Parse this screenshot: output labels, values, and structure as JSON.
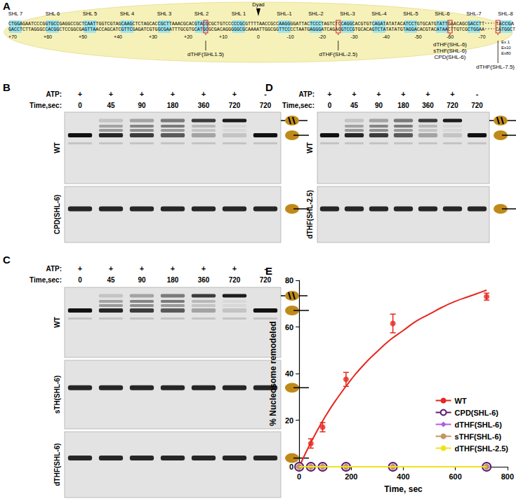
{
  "panel_labels": [
    "A",
    "B",
    "C",
    "D",
    "E"
  ],
  "panel_a": {
    "dyad": "Dyad",
    "shl_labels": [
      {
        "label": "SHL 7",
        "shl": 7
      },
      {
        "label": "SHL 6",
        "shl": 6
      },
      {
        "label": "SHL 5",
        "shl": 5
      },
      {
        "label": "SHL 4",
        "shl": 4
      },
      {
        "label": "SHL 3",
        "shl": 3
      },
      {
        "label": "SHL 2",
        "shl": 2
      },
      {
        "label": "SHL 1",
        "shl": 1
      },
      {
        "label": "SHL-1",
        "shl": -1
      },
      {
        "label": "SHL-2",
        "shl": -2
      },
      {
        "label": "SHL-3",
        "shl": -3
      },
      {
        "label": "SHL-4",
        "shl": -4
      },
      {
        "label": "SHL-5",
        "shl": -5
      },
      {
        "label": "SHL-6",
        "shl": -6
      },
      {
        "label": "SHL-7",
        "shl": -7
      },
      {
        "label": "SHL-8",
        "shl": -8
      }
    ],
    "top_strand": "CTGGAGAATCCCGGTGCCGAGGCCGCTCAATTGGTCGTAGCAAGCTCTAGCACCGCTTAAACGCACGTACGCGCTGTCCCCCGCGTTTTAACCGCCAAGGGGATTACTCCCTAGTCTCCAGGCACGTGTCAGATATATACATCCTGTGCATGTATTGAACAGCGACCTT",
    "bottom_strand": "GACCTCTTAGGGCCACGGCTCCGGCGAGTTAACCAGCATCGTTCGAGATCGTGGCGAATTTGCGTGCATGCGCGACAGGGGGCGCAAAATTGGCGGTTCCCCTAATGAGGGATCAGAGGTCCGTGCACAGTCTATATATGTAGGACACGTACATAACTTGTCGCTGGAA",
    "tail": [
      "TACCGA",
      "CATGGCT"
    ],
    "extensions": [
      "Ex 1",
      "Ex10",
      "Ex80"
    ],
    "scale": [
      {
        "value": 70,
        "label": "+70"
      },
      {
        "value": 60,
        "label": "+60"
      },
      {
        "value": 50,
        "label": "+50"
      },
      {
        "value": 40,
        "label": "+40"
      },
      {
        "value": 30,
        "label": "+30"
      },
      {
        "value": 20,
        "label": "+20"
      },
      {
        "value": 10,
        "label": "+10"
      },
      0,
      -10,
      -20,
      -30,
      -40,
      -50,
      -60,
      -70
    ],
    "damage_sites": [
      {
        "label": "dTHF(SHL1.5)",
        "shl": 1.5
      },
      {
        "label": "dTHF(SHL-2.5)",
        "shl": -2.5
      },
      {
        "label": "dTHF(SHL-6)",
        "shl": -6
      },
      {
        "label": "sTHF(SHL-6)",
        "shl": -6
      },
      {
        "label": "CPD(SHL-6)",
        "shl": -6
      },
      {
        "label": "dTHF(SHL-7.5)",
        "shl": -7.5
      }
    ]
  },
  "gels": [
    {
      "atp_label": "ATP:",
      "time_label": "Time,sec:",
      "atp": [
        "+",
        "+",
        "+",
        "+",
        "+",
        "+",
        "-"
      ],
      "times": [
        0,
        45,
        90,
        180,
        360,
        720,
        720
      ],
      "rows": [
        "WT",
        "CPD(SHL-6)"
      ]
    },
    {
      "atp_label": "ATP:",
      "time_label": "Time,sec:",
      "atp": [
        "+",
        "+",
        "+",
        "+",
        "+",
        "+",
        "-"
      ],
      "times": [
        0,
        45,
        90,
        180,
        360,
        720,
        720
      ],
      "rows": [
        "WT",
        "sTH(SHL-6)",
        "dTHF(SHL-6)"
      ]
    },
    {
      "atp_label": "ATP:",
      "time_label": "Time,sec:",
      "atp": [
        "+",
        "+",
        "+",
        "+",
        "+",
        "+",
        "-"
      ],
      "times": [
        0,
        45,
        90,
        180,
        360,
        720,
        720
      ],
      "rows": [
        "WT",
        "dTHF(SHL-2.5)"
      ]
    }
  ],
  "chart_data": {
    "type": "line",
    "xlabel": "Time, sec",
    "ylabel": "% Nucleosome remodeled",
    "x": [
      0,
      45,
      90,
      180,
      360,
      720
    ],
    "xlim": [
      0,
      800
    ],
    "xticks": [
      0,
      200,
      400,
      600,
      800
    ],
    "ylim": [
      0,
      80
    ],
    "yticks": [
      0,
      20,
      40,
      60,
      80
    ],
    "grid": false,
    "legend": "lower right",
    "series": [
      {
        "name": "WT",
        "color": "#e8251f",
        "marker": "circle",
        "line_style": "solid",
        "values": [
          0,
          10,
          17,
          37.5,
          61.5,
          73
        ],
        "errors": [
          0,
          2,
          2,
          3,
          4,
          1.5
        ],
        "fit": {
          "x": [
            0,
            50,
            100,
            150,
            200,
            250,
            300,
            350,
            400,
            450,
            500,
            550,
            600,
            650,
            700,
            720
          ],
          "values": [
            0,
            11.5,
            21.5,
            30,
            37.5,
            44,
            49.5,
            54.5,
            58.5,
            62.5,
            65.5,
            68.5,
            71,
            73,
            75,
            75.8
          ]
        }
      },
      {
        "name": "CPD(SHL-6)",
        "color": "#5a1e6e",
        "marker": "open_circle",
        "line_style": "solid",
        "values": [
          0,
          0,
          0,
          0,
          0,
          0
        ]
      },
      {
        "name": "dTHF(SHL-6)",
        "color": "#b35de0",
        "marker": "diamond",
        "line_style": "solid",
        "values": [
          0,
          0,
          0,
          0,
          0,
          0
        ]
      },
      {
        "name": "sTHF(SHL-6)",
        "color": "#c4955f",
        "marker": "circle",
        "line_style": "solid",
        "values": [
          0,
          0,
          0,
          0,
          0,
          0
        ]
      },
      {
        "name": "dTHF(SHL-2.5)",
        "color": "#f2e21a",
        "marker": "none",
        "line_style": "solid",
        "values": [
          0,
          0,
          0,
          0,
          0,
          0
        ]
      }
    ]
  }
}
